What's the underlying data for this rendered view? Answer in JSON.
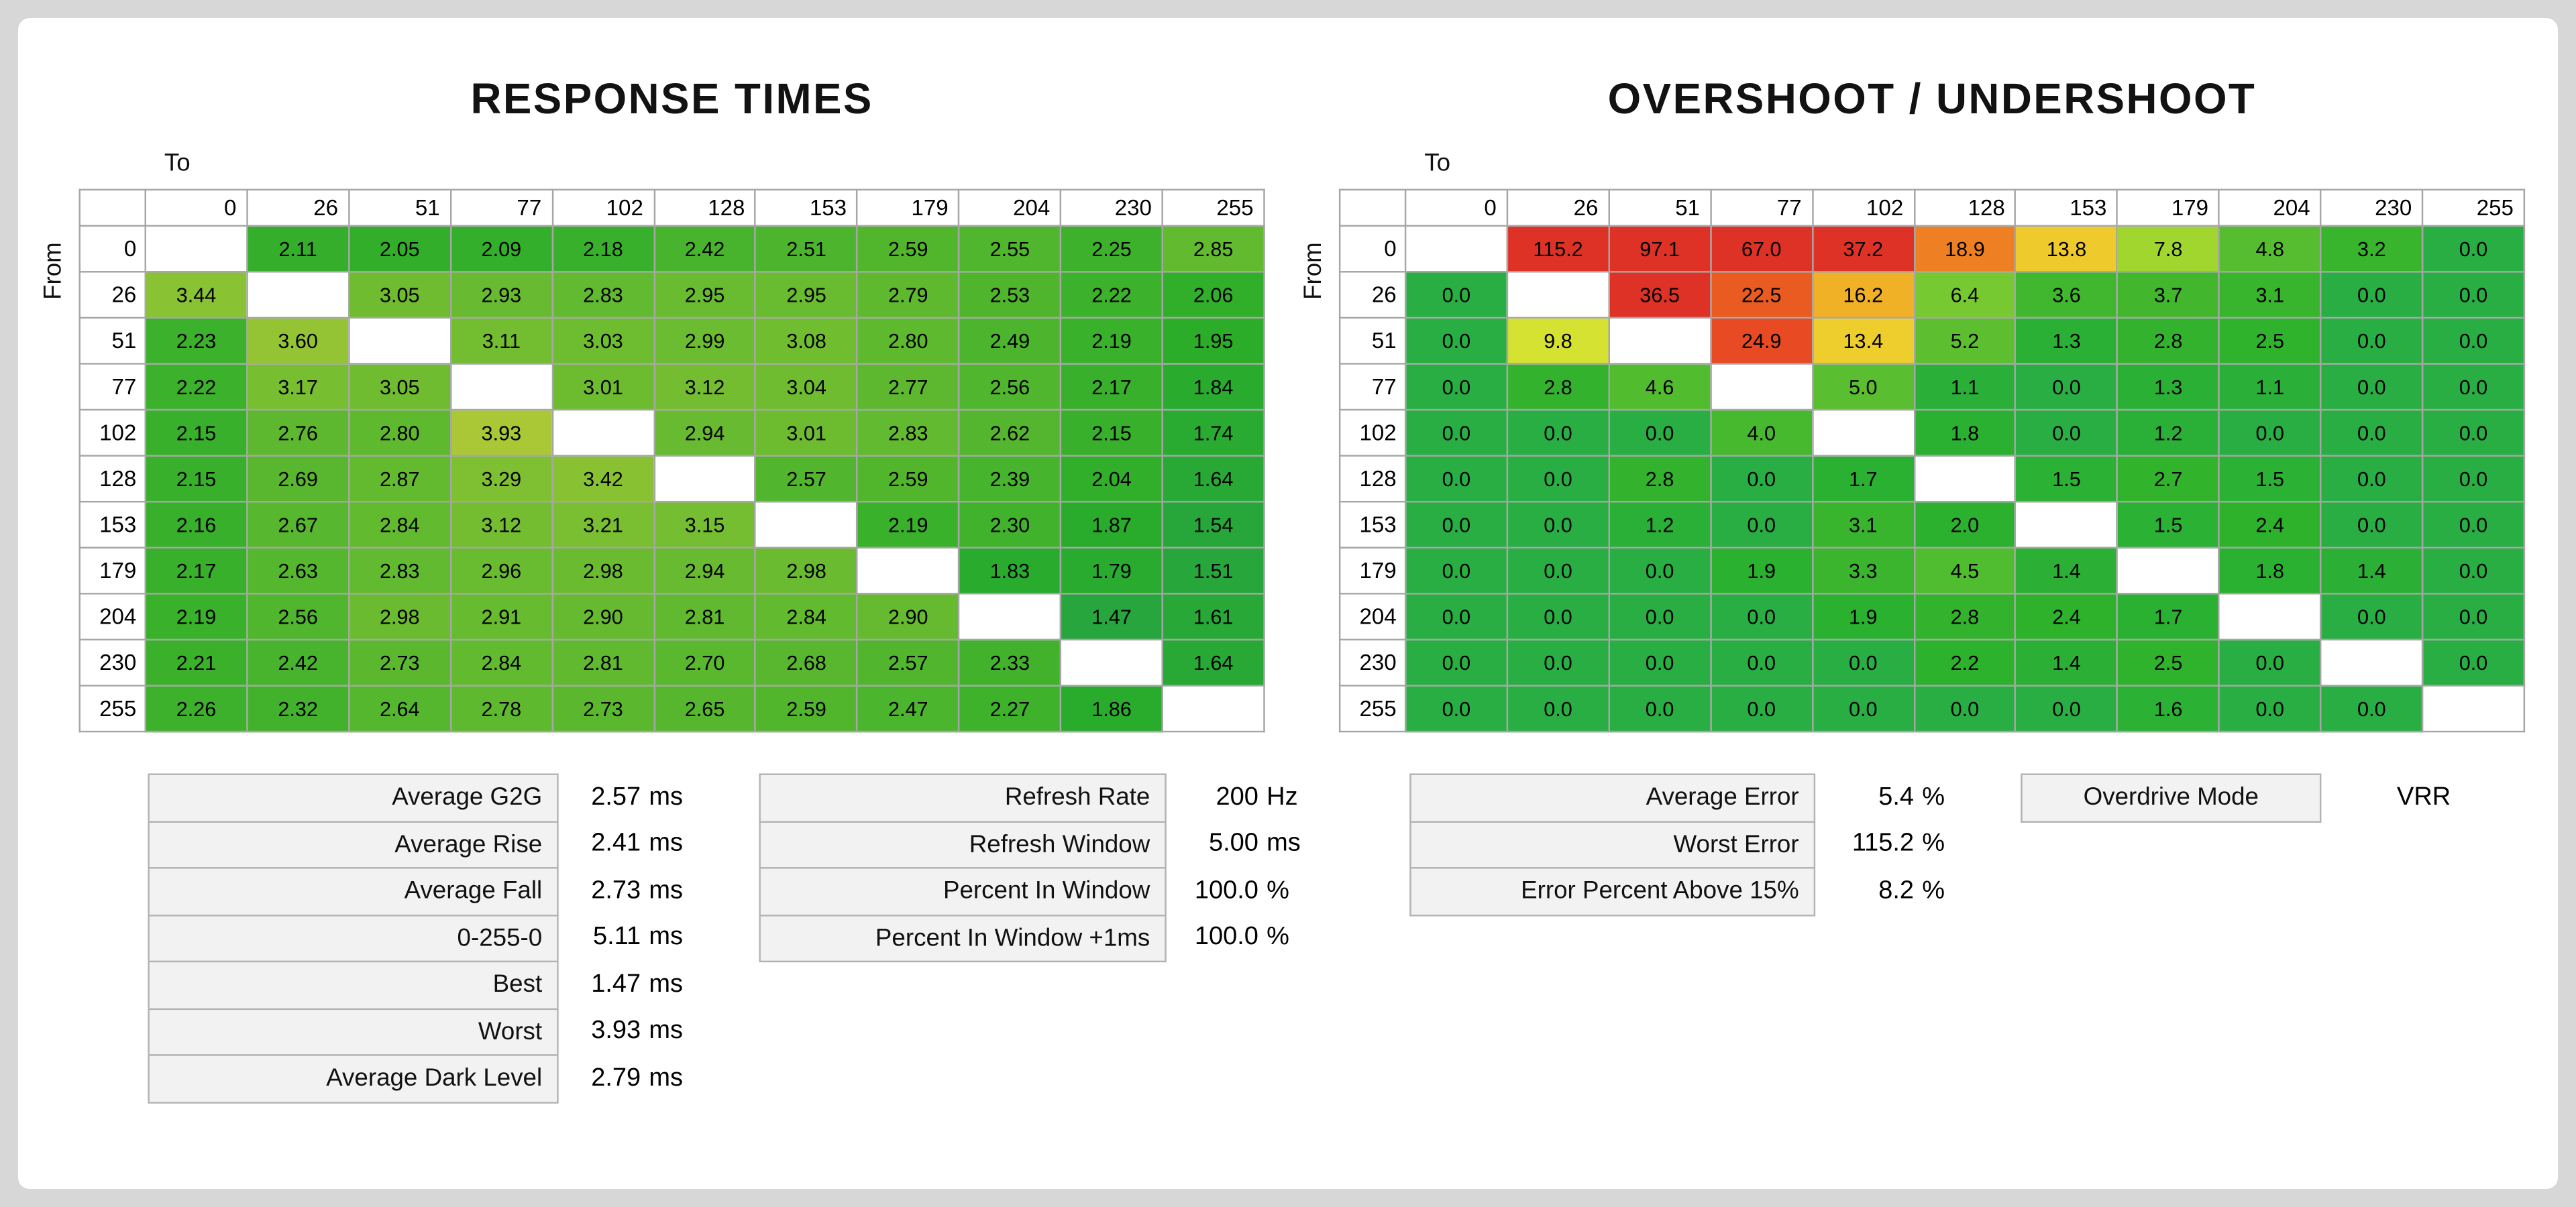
{
  "titles": {
    "response": "RESPONSE TIMES",
    "overshoot": "OVERSHOOT / UNDERSHOOT"
  },
  "axis": {
    "to": "To",
    "from": "From",
    "levels": [
      0,
      26,
      51,
      77,
      102,
      128,
      153,
      179,
      204,
      230,
      255
    ]
  },
  "chart_data": [
    {
      "type": "heatmap",
      "title": "RESPONSE TIMES",
      "xlabel": "To",
      "ylabel": "From",
      "unit": "ms",
      "decimals": 2,
      "categories": [
        0,
        26,
        51,
        77,
        102,
        128,
        153,
        179,
        204,
        230,
        255
      ],
      "matrix": [
        [
          null,
          2.11,
          2.05,
          2.09,
          2.18,
          2.42,
          2.51,
          2.59,
          2.55,
          2.25,
          2.85
        ],
        [
          3.44,
          null,
          3.05,
          2.93,
          2.83,
          2.95,
          2.95,
          2.79,
          2.53,
          2.22,
          2.06
        ],
        [
          2.23,
          3.6,
          null,
          3.11,
          3.03,
          2.99,
          3.08,
          2.8,
          2.49,
          2.19,
          1.95
        ],
        [
          2.22,
          3.17,
          3.05,
          null,
          3.01,
          3.12,
          3.04,
          2.77,
          2.56,
          2.17,
          1.84
        ],
        [
          2.15,
          2.76,
          2.8,
          3.93,
          null,
          2.94,
          3.01,
          2.83,
          2.62,
          2.15,
          1.74
        ],
        [
          2.15,
          2.69,
          2.87,
          3.29,
          3.42,
          null,
          2.57,
          2.59,
          2.39,
          2.04,
          1.64
        ],
        [
          2.16,
          2.67,
          2.84,
          3.12,
          3.21,
          3.15,
          null,
          2.19,
          2.3,
          1.87,
          1.54
        ],
        [
          2.17,
          2.63,
          2.83,
          2.96,
          2.98,
          2.94,
          2.98,
          null,
          1.83,
          1.79,
          1.51
        ],
        [
          2.19,
          2.56,
          2.98,
          2.91,
          2.9,
          2.81,
          2.84,
          2.9,
          null,
          1.47,
          1.61
        ],
        [
          2.21,
          2.42,
          2.73,
          2.84,
          2.81,
          2.7,
          2.68,
          2.57,
          2.33,
          null,
          1.64
        ],
        [
          2.26,
          2.32,
          2.64,
          2.78,
          2.73,
          2.65,
          2.59,
          2.47,
          2.27,
          1.86,
          null
        ]
      ]
    },
    {
      "type": "heatmap",
      "title": "OVERSHOOT / UNDERSHOOT",
      "xlabel": "To",
      "ylabel": "From",
      "unit": "%",
      "decimals": 1,
      "categories": [
        0,
        26,
        51,
        77,
        102,
        128,
        153,
        179,
        204,
        230,
        255
      ],
      "matrix": [
        [
          null,
          115.2,
          97.1,
          67.0,
          37.2,
          18.9,
          13.8,
          7.8,
          4.8,
          3.2,
          0.0
        ],
        [
          0.0,
          null,
          36.5,
          22.5,
          16.2,
          6.4,
          3.6,
          3.7,
          3.1,
          0.0,
          0.0
        ],
        [
          0.0,
          9.8,
          null,
          24.9,
          13.4,
          5.2,
          1.3,
          2.8,
          2.5,
          0.0,
          0.0
        ],
        [
          0.0,
          2.8,
          4.6,
          null,
          5.0,
          1.1,
          0.0,
          1.3,
          1.1,
          0.0,
          0.0
        ],
        [
          0.0,
          0.0,
          0.0,
          4.0,
          null,
          1.8,
          0.0,
          1.2,
          0.0,
          0.0,
          0.0
        ],
        [
          0.0,
          0.0,
          2.8,
          0.0,
          1.7,
          null,
          1.5,
          2.7,
          1.5,
          0.0,
          0.0
        ],
        [
          0.0,
          0.0,
          1.2,
          0.0,
          3.1,
          2.0,
          null,
          1.5,
          2.4,
          0.0,
          0.0
        ],
        [
          0.0,
          0.0,
          0.0,
          1.9,
          3.3,
          4.5,
          1.4,
          null,
          1.8,
          1.4,
          0.0
        ],
        [
          0.0,
          0.0,
          0.0,
          0.0,
          1.9,
          2.8,
          2.4,
          1.7,
          null,
          0.0,
          0.0
        ],
        [
          0.0,
          0.0,
          0.0,
          0.0,
          0.0,
          2.2,
          1.4,
          2.5,
          0.0,
          null,
          0.0
        ],
        [
          0.0,
          0.0,
          0.0,
          0.0,
          0.0,
          0.0,
          0.0,
          1.6,
          0.0,
          0.0,
          null
        ]
      ]
    }
  ],
  "stats": {
    "response": [
      {
        "label": "Average G2G",
        "value": "2.57",
        "unit": "ms"
      },
      {
        "label": "Average Rise",
        "value": "2.41",
        "unit": "ms"
      },
      {
        "label": "Average Fall",
        "value": "2.73",
        "unit": "ms"
      },
      {
        "label": "0-255-0",
        "value": "5.11",
        "unit": "ms"
      },
      {
        "label": "Best",
        "value": "1.47",
        "unit": "ms"
      },
      {
        "label": "Worst",
        "value": "3.93",
        "unit": "ms"
      },
      {
        "label": "Average Dark Level",
        "value": "2.79",
        "unit": "ms"
      }
    ],
    "refresh": [
      {
        "label": "Refresh Rate",
        "value": "200",
        "unit": "Hz"
      },
      {
        "label": "Refresh Window",
        "value": "5.00",
        "unit": "ms"
      },
      {
        "label": "Percent In Window",
        "value": "100.0",
        "unit": "%"
      },
      {
        "label": "Percent In Window +1ms",
        "value": "100.0",
        "unit": "%"
      }
    ],
    "error": [
      {
        "label": "Average Error",
        "value": "5.4",
        "unit": "%"
      },
      {
        "label": "Worst Error",
        "value": "115.2",
        "unit": "%"
      },
      {
        "label": "Error Percent Above 15%",
        "value": "8.2",
        "unit": "%"
      }
    ],
    "overdrive": [
      {
        "label": "Overdrive Mode",
        "value": "VRR",
        "unit": ""
      }
    ]
  },
  "colors": {
    "background": "#d7d7d7",
    "card": "#ffffff",
    "grid_border": "#a6a6a6",
    "green": "#1fa23e",
    "yellow": "#ecd24a",
    "orange": "#ee8c3a",
    "red": "#dd4036"
  }
}
